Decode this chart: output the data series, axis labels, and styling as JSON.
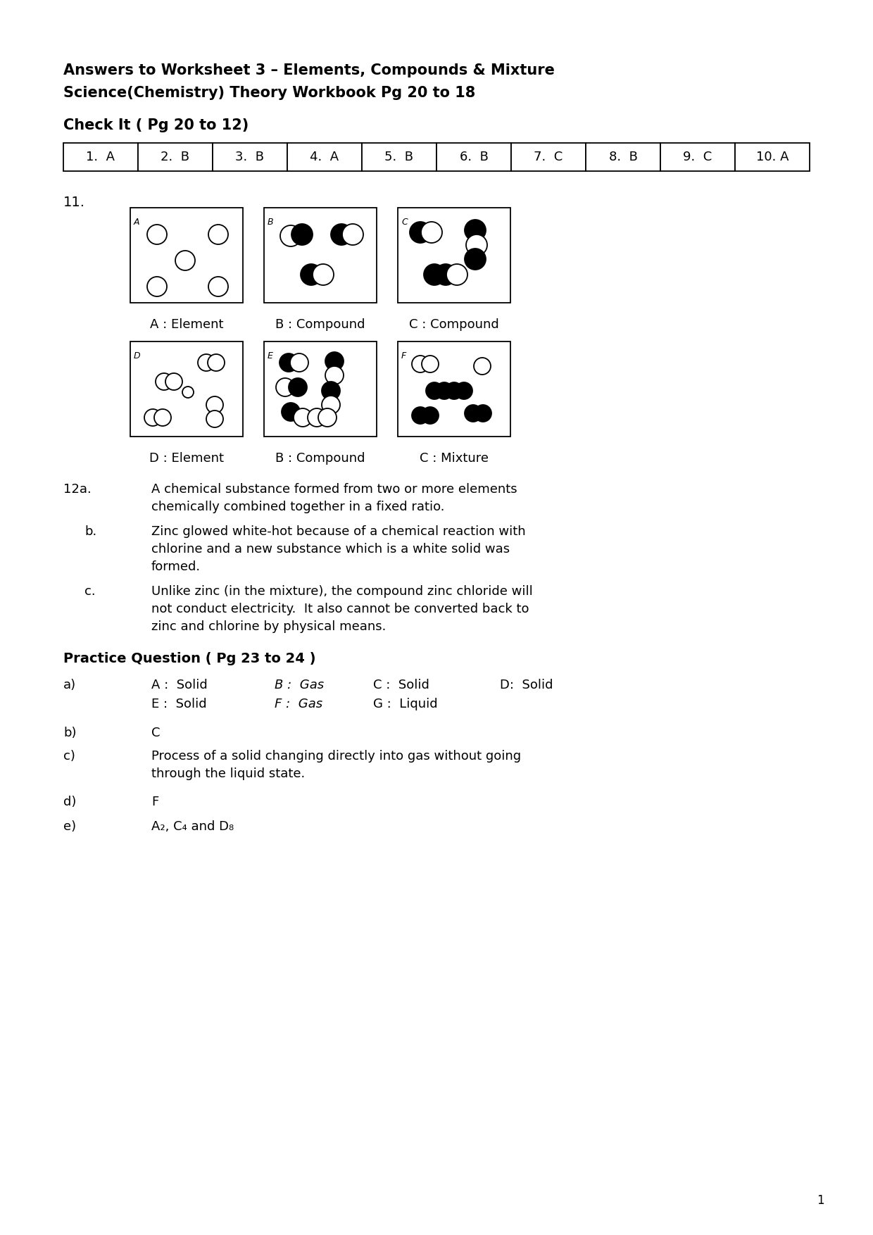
{
  "title_line1": "Answers to Worksheet 3 – Elements, Compounds & Mixture",
  "title_line2": "Science(Chemistry) Theory Workbook Pg 20 to 18",
  "section1": "Check It ( Pg 20 to 12)",
  "table_answers": [
    "1.  A",
    "2.  B",
    "3.  B",
    "4.  A",
    "5.  B",
    "6.  B",
    "7.  C",
    "8.  B",
    "9.  C",
    "10. A"
  ],
  "q12a_label": "12a.",
  "q12a_text1": "A chemical substance formed from two or more elements",
  "q12a_text2": "chemically combined together in a fixed ratio.",
  "q12b_label": "b.",
  "q12b_text1": "Zinc glowed white-hot because of a chemical reaction with",
  "q12b_text2": "chlorine and a new substance which is a white solid was",
  "q12b_text3": "formed.",
  "q12c_label": "c.",
  "q12c_text1": "Unlike zinc (in the mixture), the compound zinc chloride will",
  "q12c_text2": "not conduct electricity.  It also cannot be converted back to",
  "q12c_text3": "zinc and chlorine by physical means.",
  "section2": "Practice Question ( Pg 23 to 24 )",
  "pqa_label": "a)",
  "pqb_label": "b)",
  "pqb_text": "C",
  "pqc_label": "c)",
  "pqc_text1": "Process of a solid changing directly into gas without going",
  "pqc_text2": "through the liquid state.",
  "pqd_label": "d)",
  "pqd_text": "F",
  "pqe_label": "e)",
  "pqe_text": "A₂, C₄ and D₈",
  "page_number": "1",
  "bg_color": "#ffffff",
  "text_color": "#000000"
}
